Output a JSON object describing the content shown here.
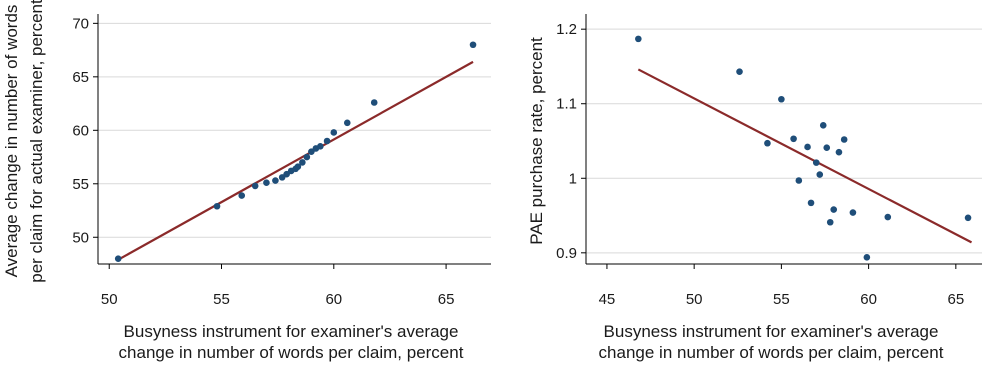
{
  "chart_data": [
    {
      "type": "scatter",
      "xlabel": [
        "Busyness instrument for examiner's average",
        "change in number of words per claim, percent"
      ],
      "ylabel": [
        "Average change in number of words",
        "per claim for actual examiner, percent"
      ],
      "xlim": [
        49.5,
        67
      ],
      "ylim": [
        47.5,
        70.5
      ],
      "xticks": [
        50,
        55,
        60,
        65
      ],
      "yticks": [
        50,
        55,
        60,
        65,
        70
      ],
      "grid": "horizontal",
      "colors": {
        "points": "#1f4e79",
        "fit": "#8b2a2a"
      },
      "points": [
        {
          "x": 50.4,
          "y": 48.0
        },
        {
          "x": 54.8,
          "y": 52.9
        },
        {
          "x": 55.9,
          "y": 53.9
        },
        {
          "x": 56.5,
          "y": 54.8
        },
        {
          "x": 57.0,
          "y": 55.1
        },
        {
          "x": 57.4,
          "y": 55.3
        },
        {
          "x": 57.7,
          "y": 55.6
        },
        {
          "x": 57.9,
          "y": 55.9
        },
        {
          "x": 58.1,
          "y": 56.2
        },
        {
          "x": 58.3,
          "y": 56.4
        },
        {
          "x": 58.4,
          "y": 56.6
        },
        {
          "x": 58.6,
          "y": 57.0
        },
        {
          "x": 58.8,
          "y": 57.5
        },
        {
          "x": 59.0,
          "y": 58.0
        },
        {
          "x": 59.2,
          "y": 58.3
        },
        {
          "x": 59.4,
          "y": 58.5
        },
        {
          "x": 59.7,
          "y": 59.0
        },
        {
          "x": 60.0,
          "y": 59.8
        },
        {
          "x": 60.6,
          "y": 60.7
        },
        {
          "x": 61.8,
          "y": 62.6
        },
        {
          "x": 66.2,
          "y": 68.0
        }
      ],
      "fit_line": {
        "x": [
          50.4,
          66.2
        ],
        "y": [
          47.9,
          66.4
        ]
      }
    },
    {
      "type": "scatter",
      "xlabel": [
        "Busyness instrument for examiner's average",
        "change in number of words per claim, percent"
      ],
      "ylabel": [
        "PAE purchase rate, percent"
      ],
      "xlim": [
        43.8,
        66.5
      ],
      "ylim": [
        0.885,
        1.215
      ],
      "xticks": [
        45,
        50,
        55,
        60,
        65
      ],
      "yticks": [
        0.9,
        1,
        1.1,
        1.2
      ],
      "ytick_labels": [
        "0.9",
        "1",
        "1.1",
        "1.2"
      ],
      "grid": "horizontal",
      "colors": {
        "points": "#1f4e79",
        "fit": "#8b2a2a"
      },
      "points": [
        {
          "x": 46.8,
          "y": 1.187
        },
        {
          "x": 52.6,
          "y": 1.143
        },
        {
          "x": 54.2,
          "y": 1.047
        },
        {
          "x": 55.0,
          "y": 1.106
        },
        {
          "x": 55.7,
          "y": 1.053
        },
        {
          "x": 56.0,
          "y": 0.997
        },
        {
          "x": 56.5,
          "y": 1.042
        },
        {
          "x": 56.7,
          "y": 0.967
        },
        {
          "x": 57.0,
          "y": 1.021
        },
        {
          "x": 57.2,
          "y": 1.005
        },
        {
          "x": 57.4,
          "y": 1.071
        },
        {
          "x": 57.6,
          "y": 1.041
        },
        {
          "x": 57.8,
          "y": 0.941
        },
        {
          "x": 58.0,
          "y": 0.958
        },
        {
          "x": 58.3,
          "y": 1.035
        },
        {
          "x": 58.6,
          "y": 1.052
        },
        {
          "x": 59.1,
          "y": 0.954
        },
        {
          "x": 59.9,
          "y": 0.894
        },
        {
          "x": 61.1,
          "y": 0.948
        },
        {
          "x": 65.7,
          "y": 0.947
        }
      ],
      "fit_line": {
        "x": [
          46.8,
          65.9
        ],
        "y": [
          1.146,
          0.914
        ]
      }
    }
  ]
}
